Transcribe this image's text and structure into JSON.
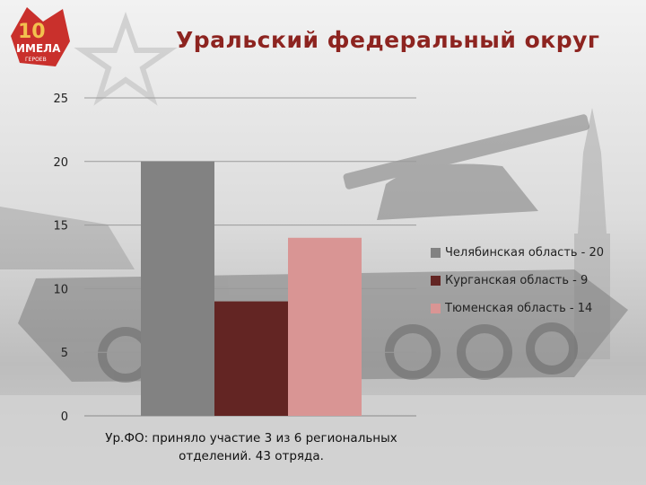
{
  "title": "Уральский федеральный округ",
  "logo": {
    "text_top": "10",
    "text_mid": "ИМЕЛА",
    "text_small": "ГЕРОЕВ"
  },
  "caption": "Ур.ФО: приняло участие 3 из 6 региональных отделений. 43 отряда.",
  "chart_data": {
    "type": "bar",
    "categories": [
      ""
    ],
    "series": [
      {
        "name": "Челябинская область - 20",
        "values": [
          20
        ],
        "color": "#828282"
      },
      {
        "name": "Курганская область - 9",
        "values": [
          9
        ],
        "color": "#632523"
      },
      {
        "name": "Тюменская область - 14",
        "values": [
          14
        ],
        "color": "#d99594"
      }
    ],
    "yticks": [
      "0",
      "5",
      "10",
      "15",
      "20",
      "25"
    ],
    "ylim": [
      0,
      25
    ],
    "grid": true,
    "legend_position": "right"
  }
}
